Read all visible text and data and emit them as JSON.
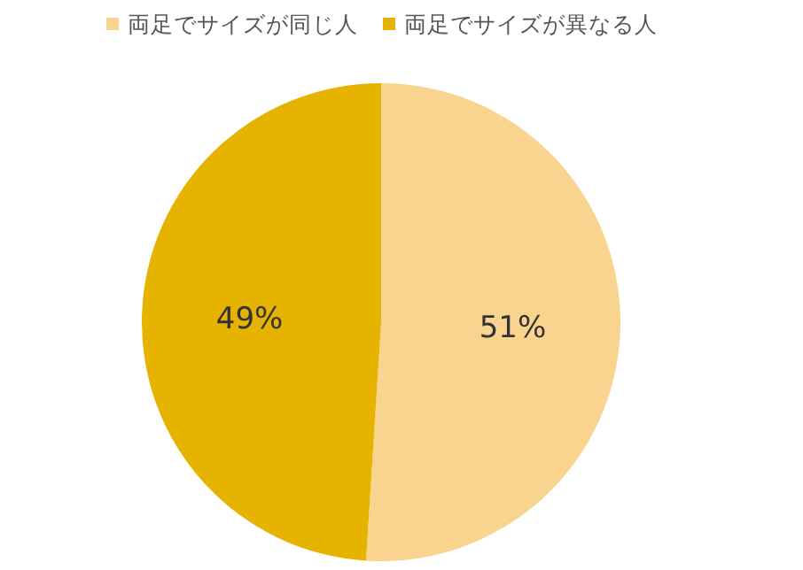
{
  "chart_data": {
    "type": "pie",
    "categories": [
      "両足でサイズが同じ人",
      "両足でサイズが異なる人"
    ],
    "values": [
      51,
      49
    ],
    "value_labels": [
      "51%",
      "49%"
    ],
    "colors": [
      "#f8d48f",
      "#e6b300"
    ],
    "legend": "top"
  }
}
